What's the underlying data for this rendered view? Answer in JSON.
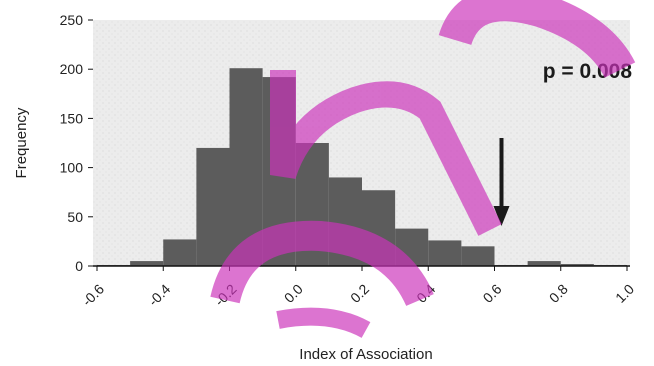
{
  "chart_data": {
    "type": "bar",
    "title": "",
    "xlabel": "Index of Association",
    "ylabel": "Frequency",
    "xlim": [
      -0.6,
      1.0
    ],
    "ylim": [
      0,
      250
    ],
    "xticks": [
      "-0.6",
      "-0.4",
      "-0.2",
      "0.0",
      "0.2",
      "0.4",
      "0.6",
      "0.8",
      "1.0"
    ],
    "yticks": [
      "0",
      "50",
      "100",
      "150",
      "200",
      "250"
    ],
    "bin_width": 0.1,
    "bins": [
      {
        "start": -0.6,
        "value": 1
      },
      {
        "start": -0.5,
        "value": 5
      },
      {
        "start": -0.4,
        "value": 27
      },
      {
        "start": -0.3,
        "value": 120
      },
      {
        "start": -0.2,
        "value": 201
      },
      {
        "start": -0.1,
        "value": 192
      },
      {
        "start": 0.0,
        "value": 125
      },
      {
        "start": 0.1,
        "value": 90
      },
      {
        "start": 0.2,
        "value": 77
      },
      {
        "start": 0.3,
        "value": 38
      },
      {
        "start": 0.4,
        "value": 26
      },
      {
        "start": 0.5,
        "value": 20
      },
      {
        "start": 0.6,
        "value": 1
      },
      {
        "start": 0.7,
        "value": 5
      },
      {
        "start": 0.8,
        "value": 2
      },
      {
        "start": 0.9,
        "value": 1
      }
    ],
    "observed_value": 0.6,
    "annotation": "p = 0.008",
    "grid": false,
    "colors": {
      "bars": "#5c5c5c",
      "plot_background": "#eeeeee",
      "arrow": "#1a1a1a",
      "watermark": "#cc33bb"
    }
  }
}
